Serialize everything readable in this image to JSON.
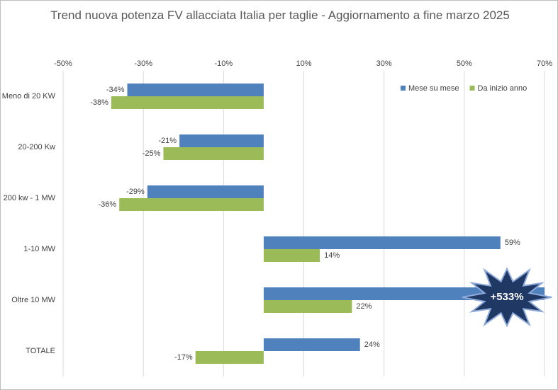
{
  "chart_data": {
    "type": "hbar",
    "title": "Trend nuova potenza FV allacciata Italia per taglie - Aggiornamento a fine marzo 2025",
    "categories": [
      "Meno di 20 KW",
      "20-200 Kw",
      "200 kw - 1 MW",
      "1-10 MW",
      "Oltre 10 MW",
      "TOTALE"
    ],
    "series": [
      {
        "name": "Mese su mese",
        "color": "#4f81bd",
        "values": [
          -34,
          -21,
          -29,
          59,
          533,
          24
        ],
        "value_labels": [
          "-34%",
          "-21%",
          "-29%",
          "59%",
          "+533%",
          "24%"
        ]
      },
      {
        "name": "Da inizio anno",
        "color": "#9bbb59",
        "values": [
          -38,
          -25,
          -36,
          14,
          22,
          -17
        ],
        "value_labels": [
          "-38%",
          "-25%",
          "-36%",
          "14%",
          "22%",
          "-17%"
        ]
      }
    ],
    "xlim": [
      -50,
      70
    ],
    "xticks": [
      {
        "value": -50,
        "label": "-50%"
      },
      {
        "value": -30,
        "label": "-30%"
      },
      {
        "value": -10,
        "label": "-10%"
      },
      {
        "value": 10,
        "label": "10%"
      },
      {
        "value": 30,
        "label": "30%"
      },
      {
        "value": 50,
        "label": "50%"
      },
      {
        "value": 70,
        "label": "70%"
      }
    ],
    "grid": true,
    "legend": "top-right"
  }
}
